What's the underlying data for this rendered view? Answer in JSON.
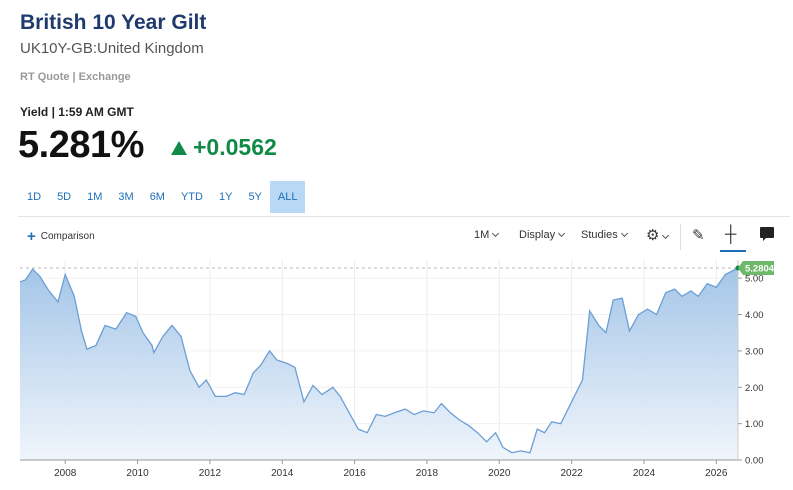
{
  "header": {
    "title": "British 10 Year Gilt",
    "subtitle": "UK10Y-GB:United Kingdom",
    "quote_source": "RT Quote | Exchange",
    "yield_label": "Yield | 1:59 AM GMT",
    "price": "5.281%",
    "change": "+0.0562"
  },
  "ranges": [
    "1D",
    "5D",
    "1M",
    "3M",
    "6M",
    "YTD",
    "1Y",
    "5Y",
    "ALL"
  ],
  "active_range": "ALL",
  "toolbar": {
    "comparison": "Comparison",
    "interval": "1M",
    "display": "Display",
    "studies": "Studies"
  },
  "icons": {
    "change_direction": "triangle-up-icon",
    "settings": "gear-icon",
    "draw": "pencil-icon",
    "crosshair": "crosshair-icon",
    "notes": "note-icon"
  },
  "colors": {
    "title": "#1f3a6e",
    "positive": "#118a47",
    "line": "#6b9fd4",
    "active_range": "#b8d8f6"
  },
  "chart_data": {
    "type": "area",
    "x_start": 2006.75,
    "x_end": 2026.6,
    "x_ticks": [
      "2008",
      "2010",
      "2012",
      "2014",
      "2016",
      "2018",
      "2020",
      "2022",
      "2024",
      "2026"
    ],
    "y_ticks": [
      "0.00",
      "1.00",
      "2.00",
      "3.00",
      "4.00",
      "5.00"
    ],
    "ylim": [
      0,
      5.5
    ],
    "last_value_label": "5.2804",
    "last_value": 5.2804,
    "points": [
      [
        2006.75,
        4.9
      ],
      [
        2006.9,
        4.95
      ],
      [
        2007.1,
        5.25
      ],
      [
        2007.3,
        5.05
      ],
      [
        2007.55,
        4.65
      ],
      [
        2007.8,
        4.35
      ],
      [
        2008.0,
        5.1
      ],
      [
        2008.25,
        4.5
      ],
      [
        2008.45,
        3.55
      ],
      [
        2008.6,
        3.05
      ],
      [
        2008.85,
        3.15
      ],
      [
        2009.1,
        3.7
      ],
      [
        2009.4,
        3.6
      ],
      [
        2009.7,
        4.05
      ],
      [
        2009.95,
        3.95
      ],
      [
        2010.15,
        3.5
      ],
      [
        2010.4,
        3.15
      ],
      [
        2010.45,
        2.95
      ],
      [
        2010.7,
        3.4
      ],
      [
        2010.95,
        3.7
      ],
      [
        2011.2,
        3.4
      ],
      [
        2011.45,
        2.45
      ],
      [
        2011.7,
        2.0
      ],
      [
        2011.9,
        2.2
      ],
      [
        2012.15,
        1.75
      ],
      [
        2012.45,
        1.75
      ],
      [
        2012.7,
        1.85
      ],
      [
        2012.95,
        1.8
      ],
      [
        2013.2,
        2.4
      ],
      [
        2013.4,
        2.6
      ],
      [
        2013.65,
        3.0
      ],
      [
        2013.85,
        2.75
      ],
      [
        2014.15,
        2.65
      ],
      [
        2014.35,
        2.55
      ],
      [
        2014.6,
        1.6
      ],
      [
        2014.85,
        2.05
      ],
      [
        2015.1,
        1.8
      ],
      [
        2015.4,
        2.0
      ],
      [
        2015.6,
        1.75
      ],
      [
        2015.85,
        1.3
      ],
      [
        2016.1,
        0.85
      ],
      [
        2016.35,
        0.75
      ],
      [
        2016.6,
        1.25
      ],
      [
        2016.85,
        1.2
      ],
      [
        2017.1,
        1.3
      ],
      [
        2017.4,
        1.4
      ],
      [
        2017.65,
        1.25
      ],
      [
        2017.9,
        1.35
      ],
      [
        2018.2,
        1.3
      ],
      [
        2018.4,
        1.55
      ],
      [
        2018.65,
        1.3
      ],
      [
        2018.9,
        1.1
      ],
      [
        2019.15,
        0.95
      ],
      [
        2019.4,
        0.75
      ],
      [
        2019.65,
        0.5
      ],
      [
        2019.9,
        0.75
      ],
      [
        2020.1,
        0.35
      ],
      [
        2020.35,
        0.2
      ],
      [
        2020.6,
        0.25
      ],
      [
        2020.85,
        0.2
      ],
      [
        2021.05,
        0.85
      ],
      [
        2021.25,
        0.75
      ],
      [
        2021.45,
        1.05
      ],
      [
        2021.7,
        1.0
      ],
      [
        2021.95,
        1.5
      ],
      [
        2022.15,
        1.9
      ],
      [
        2022.3,
        2.2
      ],
      [
        2022.5,
        4.1
      ],
      [
        2022.75,
        3.7
      ],
      [
        2022.95,
        3.5
      ],
      [
        2023.15,
        4.4
      ],
      [
        2023.4,
        4.45
      ],
      [
        2023.6,
        3.55
      ],
      [
        2023.85,
        4.0
      ],
      [
        2024.1,
        4.15
      ],
      [
        2024.35,
        4.0
      ],
      [
        2024.6,
        4.6
      ],
      [
        2024.85,
        4.7
      ],
      [
        2025.05,
        4.5
      ],
      [
        2025.3,
        4.65
      ],
      [
        2025.5,
        4.5
      ],
      [
        2025.75,
        4.85
      ],
      [
        2026.0,
        4.75
      ],
      [
        2026.25,
        5.1
      ],
      [
        2026.6,
        5.28
      ]
    ]
  }
}
